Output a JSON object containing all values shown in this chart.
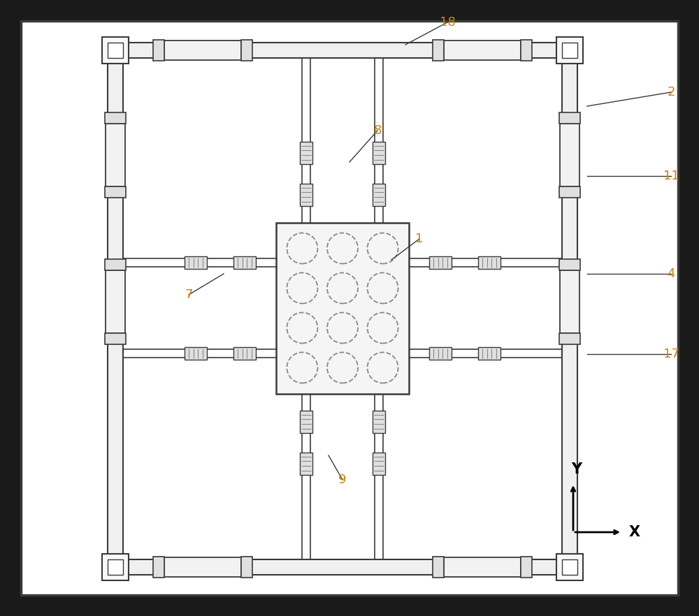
{
  "bg_outer": "#1a1a1a",
  "bg_inner": "#ffffff",
  "line_color": "#3a3a3a",
  "line_color_light": "#888888",
  "dashed_color": "#aaaaaa",
  "fill_light": "#f0f0f0",
  "fill_mid": "#e0e0e0",
  "label_color": "#c8860a",
  "label_fontsize": 13,
  "axis_label_fontsize": 15,
  "figsize": [
    10.0,
    8.82
  ],
  "dpi": 100
}
